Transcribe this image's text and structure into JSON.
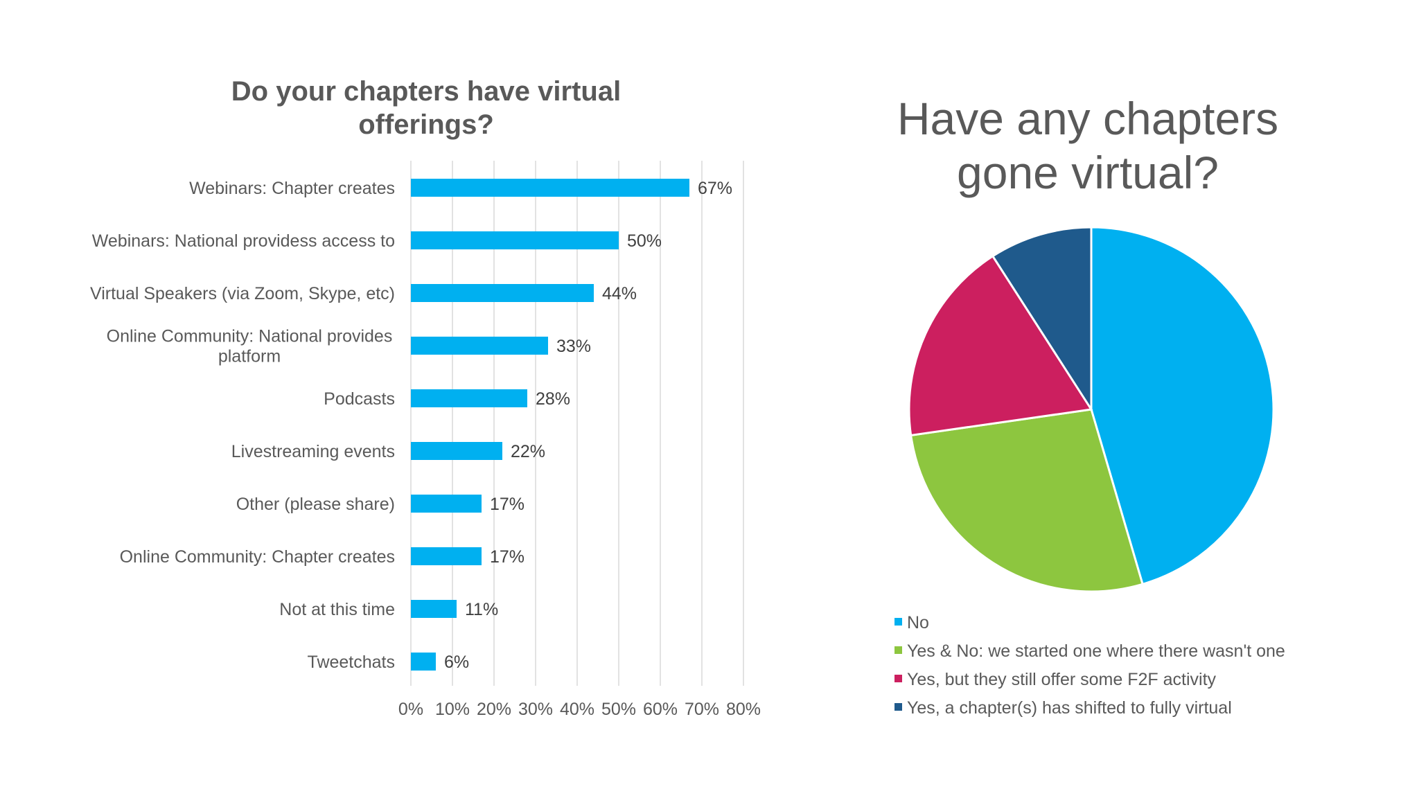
{
  "chart_data": [
    {
      "type": "bar",
      "orientation": "horizontal",
      "title": "Do your chapters have virtual\nofferings?",
      "categories": [
        "Webinars: Chapter creates",
        "Webinars: National providess access to",
        "Virtual Speakers (via Zoom, Skype, etc)",
        "Online Community: National provides\nplatform",
        "Podcasts",
        "Livestreaming events",
        "Other (please share)",
        "Online Community: Chapter creates",
        "Not at this time",
        "Tweetchats"
      ],
      "values": [
        67,
        50,
        44,
        33,
        28,
        22,
        17,
        17,
        11,
        6
      ],
      "data_labels": [
        "67%",
        "50%",
        "44%",
        "33%",
        "28%",
        "22%",
        "17%",
        "17%",
        "11%",
        "6%"
      ],
      "xlim": [
        0,
        80
      ],
      "ticks": [
        "0%",
        "10%",
        "20%",
        "30%",
        "40%",
        "50%",
        "60%",
        "70%",
        "80%"
      ],
      "grid": true,
      "bar_color": "#00B0F0"
    },
    {
      "type": "pie",
      "title": "Have any chapters\ngone virtual?",
      "labels": [
        "No",
        "Yes & No: we started one where there wasn't one",
        "Yes, but they still offer some F2F activity",
        "Yes, a chapter(s) has shifted to fully virtual"
      ],
      "values": [
        45,
        27,
        18,
        9
      ],
      "colors": [
        "#00B0F0",
        "#8DC63F",
        "#CC1F5F",
        "#1F5A8C"
      ],
      "legend_position": "bottom"
    }
  ]
}
